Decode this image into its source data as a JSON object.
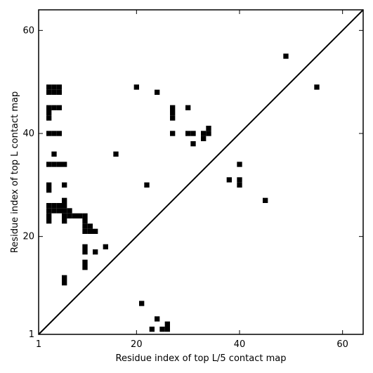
{
  "chart_data": {
    "type": "heatmap",
    "title": "",
    "xlabel": "Residue index of top L/5 contact map",
    "ylabel": "Residue index of top L contact map",
    "xlim": [
      1,
      64
    ],
    "ylim": [
      1,
      64
    ],
    "xticks": [
      1,
      20,
      40,
      60
    ],
    "yticks": [
      1,
      20,
      40,
      60
    ],
    "x_tick_labels": [
      "1",
      "20",
      "40",
      "60"
    ],
    "y_tick_labels": [
      "1",
      "20",
      "40",
      "60"
    ],
    "diagonal": true,
    "grid": false,
    "colors": {
      "contact": "#000000",
      "background": "#ffffff"
    },
    "upper_triangle_contacts": [
      [
        49,
        55
      ],
      [
        55,
        49
      ]
    ],
    "lower_triangle_contacts": [
      [
        3,
        49
      ],
      [
        4,
        49
      ],
      [
        5,
        49
      ],
      [
        3,
        48
      ],
      [
        4,
        48
      ],
      [
        5,
        48
      ],
      [
        3,
        45
      ],
      [
        4,
        45
      ],
      [
        5,
        45
      ],
      [
        3,
        44
      ],
      [
        3,
        43
      ],
      [
        3,
        40
      ],
      [
        4,
        40
      ],
      [
        5,
        40
      ],
      [
        4,
        36
      ],
      [
        3,
        34
      ],
      [
        4,
        34
      ],
      [
        5,
        34
      ],
      [
        6,
        34
      ],
      [
        3,
        30
      ],
      [
        6,
        30
      ],
      [
        3,
        29
      ],
      [
        6,
        27
      ],
      [
        3,
        26
      ],
      [
        4,
        26
      ],
      [
        5,
        26
      ],
      [
        6,
        26
      ],
      [
        3,
        25
      ],
      [
        4,
        25
      ],
      [
        5,
        25
      ],
      [
        6,
        25
      ],
      [
        7,
        25
      ],
      [
        3,
        24
      ],
      [
        6,
        24
      ],
      [
        7,
        24
      ],
      [
        8,
        24
      ],
      [
        9,
        24
      ],
      [
        10,
        24
      ],
      [
        3,
        23
      ],
      [
        6,
        23
      ],
      [
        10,
        23
      ],
      [
        10,
        22
      ],
      [
        11,
        22
      ],
      [
        10,
        21
      ],
      [
        11,
        21
      ],
      [
        12,
        21
      ],
      [
        10,
        18
      ],
      [
        10,
        17
      ],
      [
        12,
        17
      ],
      [
        14,
        18
      ],
      [
        10,
        15
      ],
      [
        10,
        14
      ],
      [
        6,
        12
      ],
      [
        6,
        11
      ],
      [
        16,
        36
      ],
      [
        20,
        49
      ],
      [
        24,
        48
      ],
      [
        22,
        30
      ],
      [
        27,
        45
      ],
      [
        27,
        44
      ],
      [
        27,
        43
      ],
      [
        27,
        40
      ],
      [
        30,
        45
      ],
      [
        30,
        40
      ],
      [
        31,
        40
      ],
      [
        33,
        40
      ],
      [
        34,
        40
      ],
      [
        34,
        41
      ],
      [
        33,
        39
      ],
      [
        31,
        38
      ],
      [
        40,
        34
      ],
      [
        38,
        31
      ],
      [
        40,
        31
      ],
      [
        40,
        30
      ],
      [
        45,
        27
      ],
      [
        21,
        7
      ],
      [
        24,
        4
      ],
      [
        23,
        2
      ],
      [
        25,
        2
      ],
      [
        26,
        2
      ],
      [
        26,
        3
      ]
    ]
  }
}
